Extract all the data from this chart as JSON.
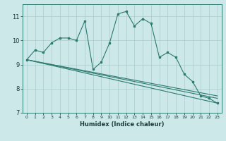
{
  "xlabel": "Humidex (Indice chaleur)",
  "bg_color": "#cce8e8",
  "line_color": "#2d7a6e",
  "grid_color": "#aacccc",
  "xlim": [
    -0.5,
    23.5
  ],
  "ylim": [
    7,
    11.5
  ],
  "yticks": [
    7,
    8,
    9,
    10,
    11
  ],
  "xticks": [
    0,
    1,
    2,
    3,
    4,
    5,
    6,
    7,
    8,
    9,
    10,
    11,
    12,
    13,
    14,
    15,
    16,
    17,
    18,
    19,
    20,
    21,
    22,
    23
  ],
  "line1_x": [
    0,
    1,
    2,
    3,
    4,
    5,
    6,
    7,
    8,
    9,
    10,
    11,
    12,
    13,
    14,
    15,
    16,
    17,
    18,
    19,
    20,
    21,
    22,
    23
  ],
  "line1_y": [
    9.2,
    9.6,
    9.5,
    9.9,
    10.1,
    10.1,
    10.0,
    10.8,
    8.8,
    9.1,
    9.9,
    11.1,
    11.2,
    10.6,
    10.9,
    10.7,
    9.3,
    9.5,
    9.3,
    8.6,
    8.3,
    7.7,
    7.6,
    7.4
  ],
  "line2_x": [
    0,
    23
  ],
  "line2_y": [
    9.2,
    7.4
  ],
  "line3_x": [
    0,
    23
  ],
  "line3_y": [
    9.2,
    7.6
  ],
  "line4_x": [
    0,
    23
  ],
  "line4_y": [
    9.2,
    7.7
  ]
}
